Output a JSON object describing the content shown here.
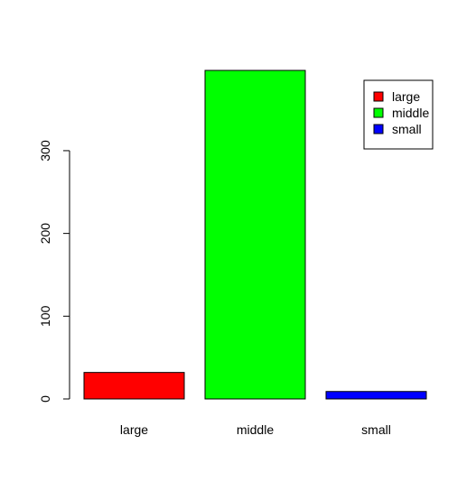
{
  "chart_data": {
    "type": "bar",
    "title": "",
    "xlabel": "",
    "ylabel": "",
    "categories": [
      "large",
      "middle",
      "small"
    ],
    "values": [
      32,
      397,
      9
    ],
    "colors": [
      "#ff0000",
      "#00ff00",
      "#0000ff"
    ],
    "ylim": [
      0,
      397
    ],
    "yticks": [
      0,
      100,
      200,
      300
    ],
    "ytick_labels": [
      "0",
      "100",
      "200",
      "300"
    ],
    "grid": false,
    "legend": {
      "position": "top-right",
      "entries": [
        "large",
        "middle",
        "small"
      ]
    }
  }
}
